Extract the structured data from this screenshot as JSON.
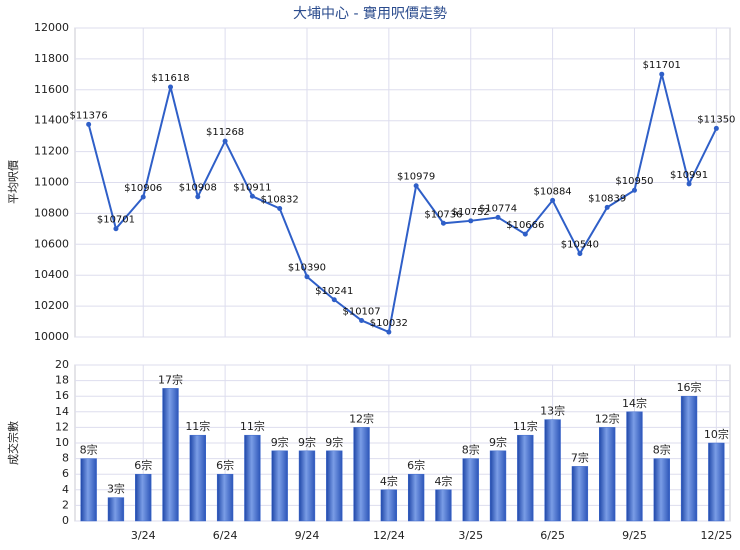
{
  "chart_data": [
    {
      "type": "line",
      "title": "大埔中心 - 實用呎價走勢",
      "ylabel": "平均呎價",
      "color": "#2f5fc8",
      "values": [
        11376,
        10701,
        10906,
        11618,
        10908,
        11268,
        10911,
        10832,
        10390,
        10241,
        10107,
        10032,
        10979,
        10736,
        10752,
        10774,
        10666,
        10884,
        10540,
        10839,
        10950,
        11701,
        10991,
        11350
      ],
      "value_labels": [
        "$11376",
        "$10701",
        "$10906",
        "$11618",
        "$10908",
        "$11268",
        "$10911",
        "$10832",
        "$10390",
        "$10241",
        "$10107",
        "$10032",
        "$10979",
        "$10736",
        "$10752",
        "$10774",
        "$10666",
        "$10884",
        "$10540",
        "$10839",
        "$10950",
        "$11701",
        "$10991",
        "$11350"
      ],
      "ylim": [
        10000,
        12000
      ],
      "yticks": [
        10000,
        10200,
        10400,
        10600,
        10800,
        11000,
        11200,
        11400,
        11600,
        11800,
        12000
      ],
      "grid": true
    },
    {
      "type": "bar",
      "ylabel": "成交宗數",
      "color": "#3a66cc",
      "categories": [
        null,
        null,
        "3/24",
        null,
        null,
        "6/24",
        null,
        null,
        "9/24",
        null,
        null,
        "12/24",
        null,
        null,
        "3/25",
        null,
        null,
        "6/25",
        null,
        null,
        "9/25",
        null,
        null,
        "12/25"
      ],
      "values": [
        8,
        3,
        6,
        17,
        11,
        6,
        11,
        9,
        9,
        9,
        12,
        4,
        6,
        4,
        8,
        9,
        11,
        13,
        7,
        12,
        14,
        8,
        16,
        10
      ],
      "value_labels": [
        "8宗",
        "3宗",
        "6宗",
        "17宗",
        "11宗",
        "6宗",
        "11宗",
        "9宗",
        "9宗",
        "9宗",
        "12宗",
        "4宗",
        "6宗",
        "4宗",
        "8宗",
        "9宗",
        "11宗",
        "13宗",
        "7宗",
        "12宗",
        "14宗",
        "8宗",
        "16宗",
        "10宗"
      ],
      "ylim": [
        0,
        20
      ],
      "yticks": [
        0,
        2,
        4,
        6,
        8,
        10,
        12,
        14,
        16,
        18,
        20
      ],
      "grid": true
    }
  ]
}
